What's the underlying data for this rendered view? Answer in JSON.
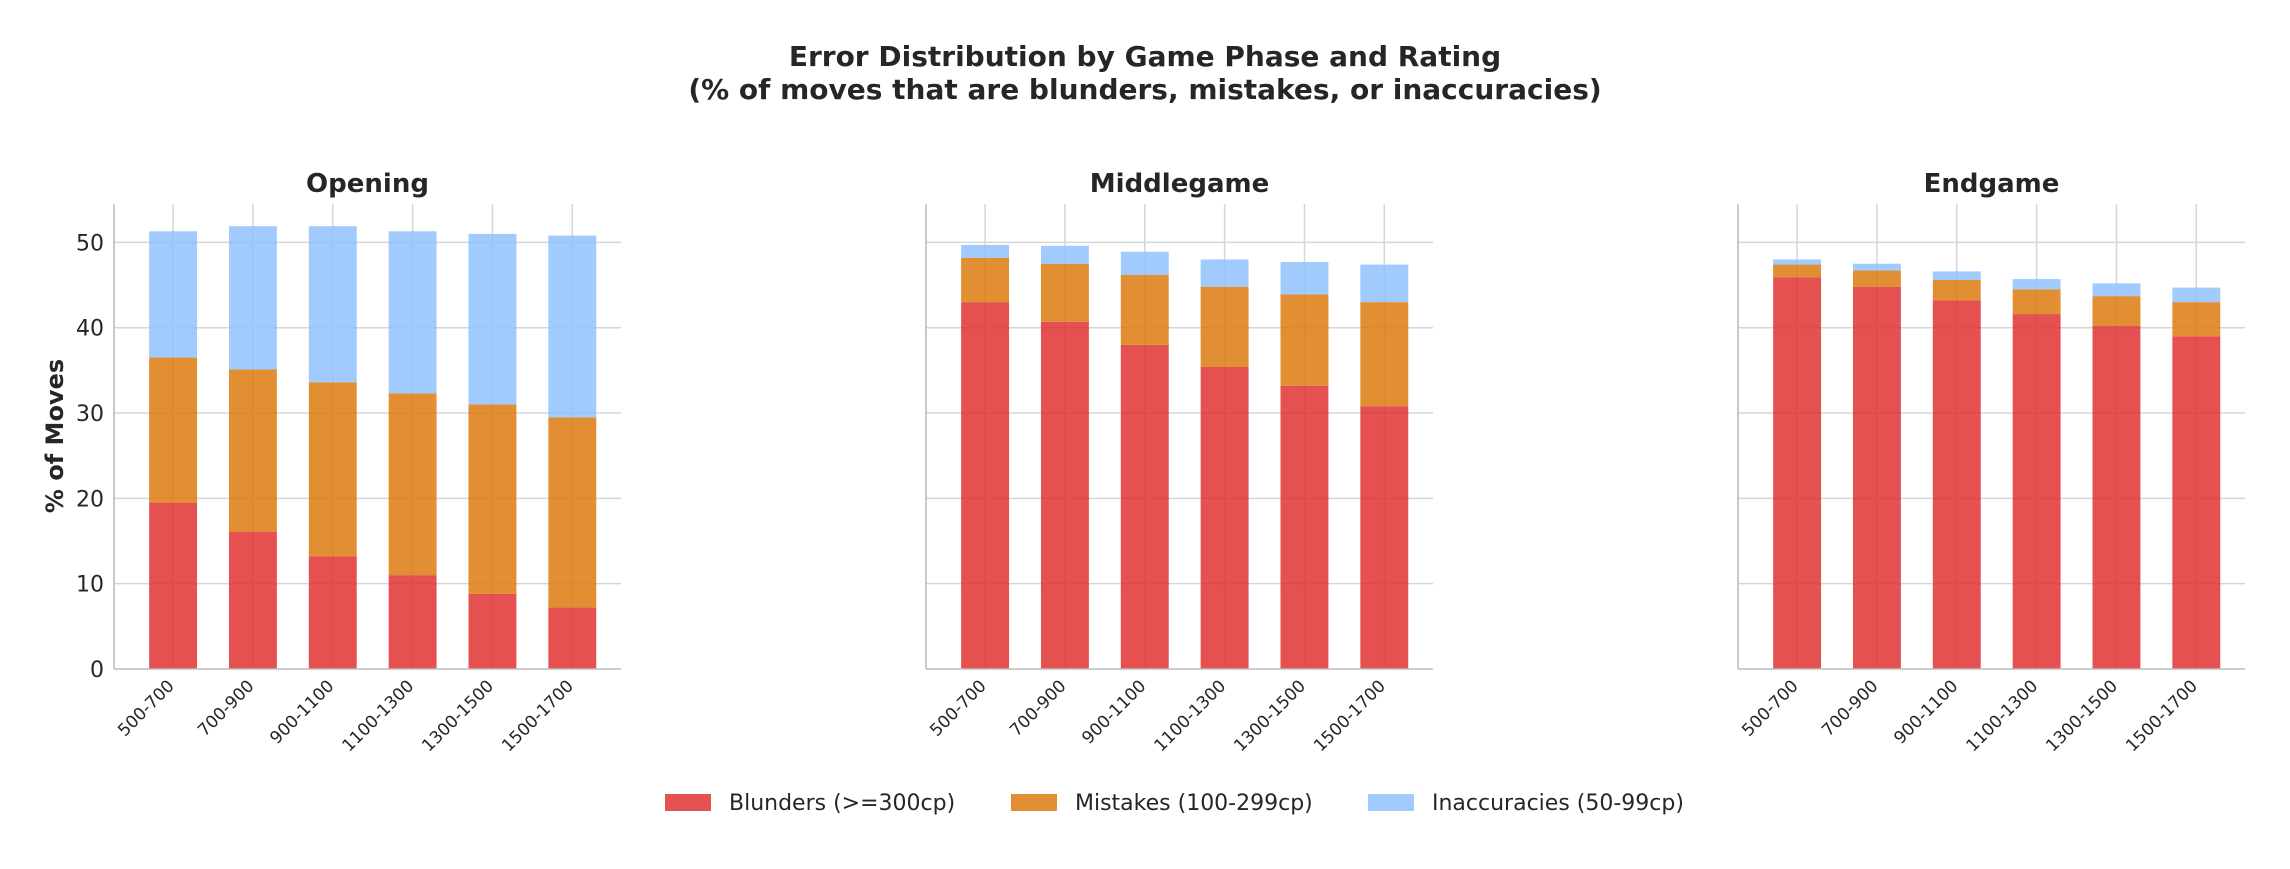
{
  "chart_data": {
    "type": "bar",
    "stacked": true,
    "title": "Error Distribution by Game Phase and Rating",
    "subtitle": "(% of moves that are blunders, mistakes, or inaccuracies)",
    "ylabel": "% of Moves",
    "ylim": [
      0,
      54.5
    ],
    "yticks": [
      0,
      10,
      20,
      30,
      40,
      50
    ],
    "grid": true,
    "legend_position": "bottom-center",
    "categories": [
      "500-700",
      "700-900",
      "900-1100",
      "1100-1300",
      "1300-1500",
      "1500-1700"
    ],
    "series_meta": [
      {
        "name": "Blunders (>=300cp)",
        "color": "#e03131"
      },
      {
        "name": "Mistakes (100-299cp)",
        "color": "#dd7a0e"
      },
      {
        "name": "Inaccuracies (50-99cp)",
        "color": "#8fc2fb"
      }
    ],
    "panels": [
      {
        "title": "Opening",
        "series": [
          {
            "name": "Blunders (>=300cp)",
            "values": [
              19.5,
              16.1,
              13.2,
              11.0,
              8.8,
              7.2
            ]
          },
          {
            "name": "Mistakes (100-299cp)",
            "values": [
              17.0,
              19.0,
              20.4,
              21.3,
              22.2,
              22.3
            ]
          },
          {
            "name": "Inaccuracies (50-99cp)",
            "values": [
              14.8,
              16.8,
              18.3,
              19.0,
              20.0,
              21.3
            ]
          }
        ]
      },
      {
        "title": "Middlegame",
        "series": [
          {
            "name": "Blunders (>=300cp)",
            "values": [
              43.0,
              40.7,
              38.0,
              35.4,
              33.2,
              30.8
            ]
          },
          {
            "name": "Mistakes (100-299cp)",
            "values": [
              5.2,
              6.8,
              8.2,
              9.4,
              10.7,
              12.2
            ]
          },
          {
            "name": "Inaccuracies (50-99cp)",
            "values": [
              1.5,
              2.1,
              2.7,
              3.2,
              3.8,
              4.4
            ]
          }
        ]
      },
      {
        "title": "Endgame",
        "series": [
          {
            "name": "Blunders (>=300cp)",
            "values": [
              45.9,
              44.8,
              43.2,
              41.6,
              40.2,
              39.0
            ]
          },
          {
            "name": "Mistakes (100-299cp)",
            "values": [
              1.5,
              1.9,
              2.4,
              2.9,
              3.5,
              4.0
            ]
          },
          {
            "name": "Inaccuracies (50-99cp)",
            "values": [
              0.6,
              0.8,
              1.0,
              1.2,
              1.5,
              1.7
            ]
          }
        ]
      }
    ]
  }
}
